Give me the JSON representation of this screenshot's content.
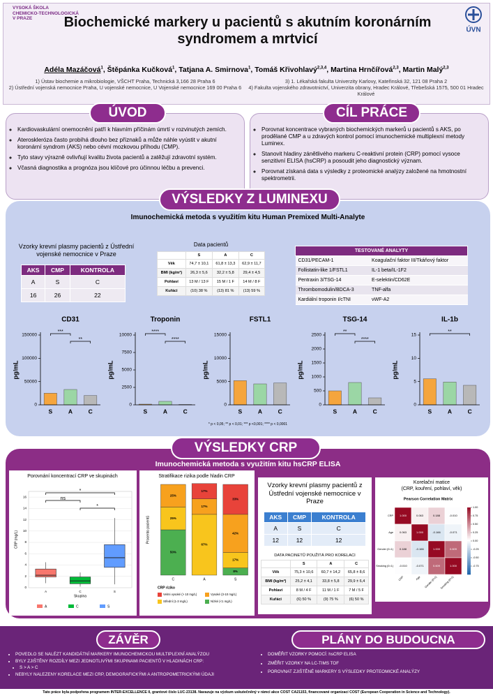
{
  "header": {
    "school": [
      "VYSOKÁ ŠKOLA",
      "CHEMICKO-TECHNOLOGICKÁ",
      "V PRAZE"
    ],
    "logo": "ÚVN",
    "title": "Biochemické markery u pacientů s akutním koronárním syndromem a mrtvicí",
    "authors": [
      {
        "name": "Adéla Mazáčová",
        "sup": "1"
      },
      {
        "name": "Štěpánka Kučková",
        "sup": "1"
      },
      {
        "name": "Tatjana A. Smirnova",
        "sup": "1"
      },
      {
        "name": "Tomáš Křivohlavý",
        "sup": "2,3,4"
      },
      {
        "name": "Martina Hrnčířová",
        "sup": "2,3"
      },
      {
        "name": "Martin Malý",
        "sup": "2,3"
      }
    ],
    "affiliations_left": [
      "1) Ústav biochemie a mikrobiologie, VŠCHT Praha, Technická 3,166 28 Praha 6",
      "2) Ústřední vojenská nemocnice Praha, U vojenské nemocnice, U Vojenské nemocnice 169 00 Praha 6"
    ],
    "affiliations_right": [
      "3) 1. Lékařská fakulta Univerzity Karlovy, Kateřinská 32, 121 08 Praha 2",
      "4) Fakulta vojenského zdravotnictví, Univerzita obrany, Hradec Králové, Třebešská 1575, 500 01 Hradec Králové"
    ]
  },
  "intro": {
    "title": "ÚVOD",
    "items": [
      "Kardiovaskulární onemocnění patří k hlavním příčinám úmrtí v rozvinutých zemích.",
      "Ateroskleróza často probíhá dlouho bez příznaků a může náhle vyústit v akutní koronární syndrom (AKS) nebo cévní mozkovou příhodu (CMP).",
      "Tyto stavy výrazně ovlivňují kvalitu života pacientů a zatěžují zdravotní systém.",
      "Včasná diagnostika a prognóza jsou klíčové pro účinnou léčbu a prevenci."
    ]
  },
  "aim": {
    "title": "CÍL PRÁCE",
    "items": [
      "Porovnat koncentrace vybraných biochemických markerů u pacientů s AKS, po prodělané CMP a u zdravých kontrol pomocí imunochemické multiplexní metody Luminex.",
      "Stanovit hladiny zánětlivého markeru C-reaktivní protein (CRP) pomocí vysoce senzitivní ELISA (hsCRP) a posoudit jeho diagnostický význam.",
      "Porovnat získaná data s výsledky z proteomické analýzy založené na hmotnostní spektrometrii."
    ]
  },
  "luminex": {
    "title": "VÝSLEDKY Z LUMINEXU",
    "subtitle": "Imunochemická metoda s využitím kitu Human Premixed Multi-Analyte",
    "samples_title": "Vzorky krevní plasmy pacientů z Ústřední vojenské nemocnice v Praze",
    "samples_table": {
      "header": [
        "AKS",
        "CMP",
        "KONTROLA"
      ],
      "rows": [
        [
          "A",
          "S",
          "C"
        ],
        [
          "16",
          "26",
          "22"
        ]
      ]
    },
    "patients_title": "Data pacientů",
    "patients_table": {
      "header": [
        "S",
        "A",
        "C"
      ],
      "rows": [
        [
          "Věk",
          "74,7 ± 10,1",
          "61,8 ± 13,3",
          "62,9 ± 11,7"
        ],
        [
          "BMI (kg/m²)",
          "26,3 ± 5,6",
          "32,2 ± 5,8",
          "29,4 ± 4,5"
        ],
        [
          "Pohlaví",
          "13 M / 13 F",
          "15 M / 1 F",
          "14 M / 8 F"
        ],
        [
          "Kuřáci",
          "(10) 38 %",
          "(13) 81 %",
          "(13) 59 %"
        ]
      ]
    },
    "analytes_table": {
      "header": [
        "TESTOVANÉ ANALYTY"
      ],
      "rows": [
        [
          "CD31/PECAM-1",
          "Koagulační faktor III/Tkáňový faktor"
        ],
        [
          "Follistatin-like 1/FSTL1",
          "IL-1 beta/IL-1F2"
        ],
        [
          "Pentraxin 3/TSG-14",
          "E-selektin/CD62E"
        ],
        [
          "Thrombomodulin/BDCA-3",
          "TNF-alfa"
        ],
        [
          "Kardiální troponin I/cTNI",
          "vWF-A2"
        ]
      ]
    },
    "footnote": "* p < 0,05; ** p < 0,01; *** p <0,001; **** p < 0,0001"
  },
  "crp": {
    "title": "VÝSLEDKY CRP",
    "subtitle": "Imunochemická metoda s využitím kitu hsCRP ELISA",
    "samples_title": "Vzorky krevní plasmy pacientů z Ústřední vojenské nemocnice v Praze",
    "samples_table": {
      "header": [
        "AKS",
        "CMP",
        "KONTROLA"
      ],
      "rows": [
        [
          "A",
          "S",
          "C"
        ],
        [
          "12",
          "12",
          "12"
        ]
      ]
    },
    "patients_title": "DATA PACINETŮ POUŽITÁ PRO KORELACI",
    "patients_table": {
      "header": [
        "S",
        "A",
        "C"
      ],
      "rows": [
        [
          "Věk",
          "75,3 ± 10,6",
          "60,7 ± 14,2",
          "65,8 ± 8,6"
        ],
        [
          "BMI (kg/m²)",
          "25,2 ± 4,1",
          "33,8 ± 5,8",
          "29,9 ± 6,4"
        ],
        [
          "Pohlaví",
          "8 M / 4 F",
          "11 M / 1 F",
          "7 M / 5 F"
        ],
        [
          "Kuřáci",
          "(6) 50 %",
          "(9) 75 %",
          "(6) 50 %"
        ]
      ]
    },
    "corr_heading": [
      "Korelační matice",
      "(CRP, kouření, pohlaví, věk)"
    ]
  },
  "conclusion": {
    "title": "ZÁVĚR",
    "items": [
      {
        "text": "POVEDLO SE NALÉZT KANDIDÁTNÍ MARKERY IMUNOCHEMICKOU MULTIPLEXNÍ ANALÝZOU"
      },
      {
        "text": "BYLY ZJIŠTĚNY ROZDÍLY MEZI JEDNOTLIVÝMI SKUPINAMI PACIENTŮ V HLADINÁCH CRP:",
        "sub": "S > A > C"
      },
      {
        "text": "NEBYLY NALEZENY KORELACE MEZI CRP, DEMOGRAFICKÝMI A ANTROPOMETRICKÝMI ÚDAJI"
      }
    ]
  },
  "plans": {
    "title": "PLÁNY DO BUDOUCNA",
    "items": [
      "DOMĚŘIT VZORKY POMOCÍ: hsCRP ELISA",
      "ZMĚŘIT VZORKY NA LC-TIMS TOF",
      "POROVNAT ZJIŠTĚNÉ MARKERY S VÝSLEDKY PROTEOMICKÉ ANALÝZY"
    ]
  },
  "footer": "Tato práce byla podpořena programem INTER-EXCELLENCE II, grantové číslo LUC-23138. Navazuje na výzkum uskutečněný v rámci akce COST CA21153, financované organizací COST (European Cooperation in Science and Technology).",
  "chart_data": [
    {
      "type": "bar",
      "title": "CD31",
      "ylabel": "pg/mL",
      "categories": [
        "S",
        "A",
        "C"
      ],
      "values": [
        25000,
        33000,
        20000
      ],
      "colors": [
        "#f5a53d",
        "#9bd6a5",
        "#b8b8b8"
      ],
      "ylim": [
        0,
        150000
      ],
      "yticks": [
        0,
        50000,
        100000,
        150000
      ],
      "annotations": [
        {
          "text": "***",
          "between": [
            "S",
            "A"
          ]
        },
        {
          "text": "**",
          "between": [
            "A",
            "C"
          ]
        }
      ]
    },
    {
      "type": "bar",
      "title": "Troponin",
      "ylabel": "pg/mL",
      "categories": [
        "S",
        "A",
        "C"
      ],
      "values": [
        100,
        500,
        50
      ],
      "colors": [
        "#f5a53d",
        "#9bd6a5",
        "#b8b8b8"
      ],
      "ylim": [
        0,
        10000
      ],
      "yticks": [
        0,
        2500,
        5000,
        7500,
        10000
      ],
      "annotations": [
        {
          "text": "****",
          "between": [
            "S",
            "A"
          ]
        },
        {
          "text": "****",
          "between": [
            "A",
            "C"
          ]
        }
      ]
    },
    {
      "type": "bar",
      "title": "FSTL1",
      "ylabel": "pg/mL",
      "categories": [
        "S",
        "A",
        "C"
      ],
      "values": [
        5200,
        4500,
        4700
      ],
      "colors": [
        "#f5a53d",
        "#9bd6a5",
        "#b8b8b8"
      ],
      "ylim": [
        0,
        15000
      ],
      "yticks": [
        0,
        5000,
        10000,
        15000
      ],
      "annotations": []
    },
    {
      "type": "bar",
      "title": "TSG-14",
      "ylabel": "pg/mL",
      "categories": [
        "S",
        "A",
        "C"
      ],
      "values": [
        500,
        800,
        250
      ],
      "colors": [
        "#f5a53d",
        "#9bd6a5",
        "#b8b8b8"
      ],
      "ylim": [
        0,
        2500
      ],
      "yticks": [
        0,
        500,
        1000,
        1500,
        2000,
        2500
      ],
      "annotations": [
        {
          "text": "**",
          "between": [
            "S",
            "A"
          ]
        },
        {
          "text": "****",
          "between": [
            "A",
            "C"
          ]
        }
      ]
    },
    {
      "type": "bar",
      "title": "IL-1b",
      "ylabel": "pg/mL",
      "categories": [
        "S",
        "A",
        "C"
      ],
      "values": [
        5.6,
        4.9,
        4.2
      ],
      "colors": [
        "#f5a53d",
        "#9bd6a5",
        "#b8b8b8"
      ],
      "ylim": [
        0,
        15
      ],
      "yticks": [
        0,
        5,
        10,
        15
      ],
      "annotations": [
        {
          "text": "**",
          "between": [
            "S",
            "C"
          ]
        }
      ]
    },
    {
      "type": "box",
      "title": "Porovnání koncentrací CRP ve skupinách",
      "xlabel": "Skupina",
      "ylabel": "CRP (mg/L)",
      "categories": [
        "A",
        "C",
        "S"
      ],
      "colors": [
        "#f8766d",
        "#00ba38",
        "#619cff"
      ],
      "boxes": [
        {
          "whislo": 0.8,
          "q1": 1.9,
          "med": 2.2,
          "q3": 3.3,
          "whishi": 4.5
        },
        {
          "whislo": 0.2,
          "q1": 0.7,
          "med": 1.2,
          "q3": 1.9,
          "whishi": 2.7
        },
        {
          "whislo": 0.6,
          "q1": 3.6,
          "med": 5.3,
          "q3": 7.6,
          "whishi": 12.3
        }
      ],
      "ylim": [
        0,
        17
      ],
      "yticks": [
        0,
        2,
        4,
        6,
        8,
        10,
        12,
        14,
        16
      ],
      "grid": true,
      "annotations": [
        {
          "text": "*",
          "between": [
            "A",
            "S"
          ]
        },
        {
          "text": "ns",
          "between": [
            "A",
            "C"
          ]
        },
        {
          "text": "*",
          "between": [
            "C",
            "S"
          ]
        }
      ]
    },
    {
      "type": "stacked-bar",
      "title": "Stratifikace rizika podle hladin CRP",
      "ylabel": "Procento pacientů",
      "legend_title": "CRP riziko",
      "categories": [
        "C",
        "A",
        "S"
      ],
      "ylim": [
        0,
        100
      ],
      "series": [
        {
          "name": "Velmi vysoké (> 10 mg/L)",
          "color": "#e8433a",
          "values": [
            0,
            17,
            33
          ],
          "value_labels": [
            null,
            "17%",
            "33%"
          ]
        },
        {
          "name": "Vysoké (3-10 mg/L)",
          "color": "#f7a11e",
          "values": [
            25,
            17,
            42
          ],
          "value_labels": [
            "25%",
            "17%",
            "42%"
          ]
        },
        {
          "name": "Střední (1-3 mg/L)",
          "color": "#f8c51d",
          "values": [
            25,
            67,
            17
          ],
          "value_labels": [
            "25%",
            "67%",
            "17%"
          ]
        },
        {
          "name": "Nízké (<1 mg/L)",
          "color": "#4caf50",
          "values": [
            50,
            0,
            8
          ],
          "value_labels": [
            "50%",
            null,
            "8%"
          ]
        }
      ]
    },
    {
      "type": "heatmap",
      "title": "Pearson Correlation Matrix",
      "labels": [
        "CRP",
        "Age",
        "Gender (0=1)",
        "Smoking (0=1)"
      ],
      "values": [
        [
          1,
          0.063,
          0.188,
          -0.01
        ],
        [
          0.063,
          1,
          -0.166,
          -0.071
        ],
        [
          0.188,
          -0.166,
          1,
          0.609
        ],
        [
          -0.01,
          -0.071,
          0.609,
          1
        ]
      ],
      "value_labels": [
        [
          "1.000",
          "0.063",
          "0.188",
          "-0.010"
        ],
        [
          "0.063",
          "1.000",
          "-0.166",
          "-0.071"
        ],
        [
          "0.188",
          "-0.166",
          "1.000",
          "0.609"
        ],
        [
          "-0.010",
          "-0.071",
          "0.609",
          "1.000"
        ]
      ],
      "zlim": [
        -1,
        1
      ],
      "zticks": [
        {
          "value": 1,
          "label": "1.00"
        },
        {
          "value": 0.75,
          "label": "0.75"
        },
        {
          "value": 0.5,
          "label": "0.50"
        },
        {
          "value": 0.25,
          "label": "0.25"
        },
        {
          "value": 0,
          "label": "0.00"
        },
        {
          "value": -0.25,
          "label": "-0.25"
        },
        {
          "value": -0.5,
          "label": "-0.50"
        },
        {
          "value": -0.75,
          "label": "-0.75"
        }
      ]
    }
  ]
}
